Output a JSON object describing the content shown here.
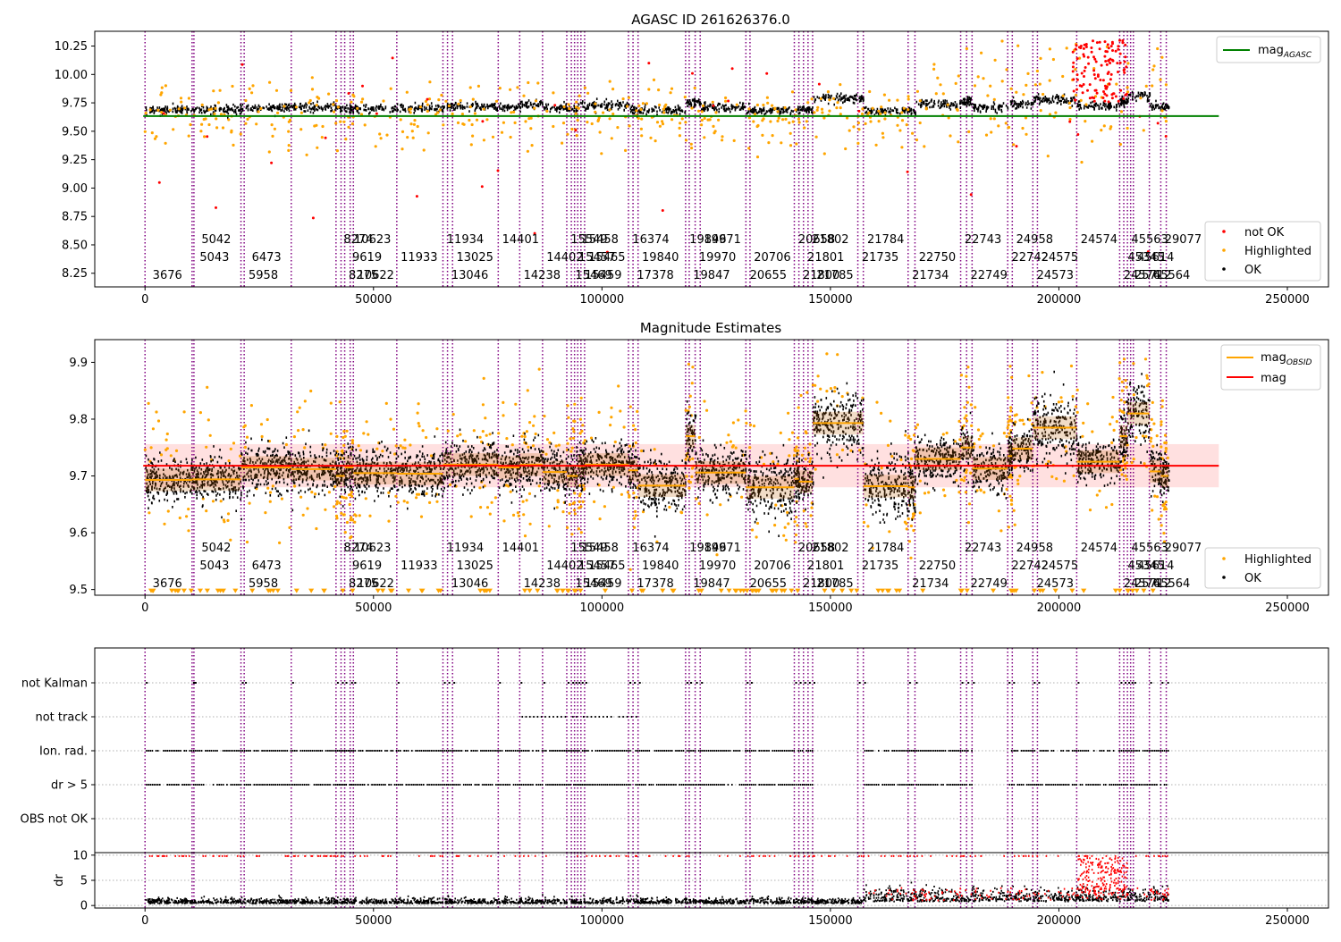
{
  "figure": {
    "panel1_title": "AGASC ID 261626376.0",
    "panel2_title": "Magnitude Estimates"
  },
  "colors": {
    "ok": "#000000",
    "highlighted": "#ffa500",
    "not_ok": "#ff0000",
    "mag_agasc": "#008000",
    "mag": "#ff0000",
    "mag_obsid": "#ffa500",
    "obsid_lines": "#800080",
    "band": "#ffd8d8"
  },
  "obsids": [
    {
      "x": 0,
      "label": "3676",
      "row": 0
    },
    {
      "x": 10300,
      "label": "5043",
      "row": 1
    },
    {
      "x": 10700,
      "label": "5042",
      "row": 2
    },
    {
      "x": 21000,
      "label": "5958",
      "row": 0
    },
    {
      "x": 21700,
      "label": "6473",
      "row": 1
    },
    {
      "x": 32000,
      "label": "",
      "row": 0
    },
    {
      "x": 41800,
      "label": "8274",
      "row": 2
    },
    {
      "x": 42900,
      "label": "8275",
      "row": 0
    },
    {
      "x": 43700,
      "label": "9619",
      "row": 1
    },
    {
      "x": 44900,
      "label": "10623",
      "row": 2
    },
    {
      "x": 45600,
      "label": "10622",
      "row": 0
    },
    {
      "x": 55100,
      "label": "11933",
      "row": 1
    },
    {
      "x": 65200,
      "label": "11934",
      "row": 2
    },
    {
      "x": 66200,
      "label": "13046",
      "row": 0
    },
    {
      "x": 67300,
      "label": "13025",
      "row": 1
    },
    {
      "x": 77300,
      "label": "14401",
      "row": 2
    },
    {
      "x": 82000,
      "label": "14238",
      "row": 0
    },
    {
      "x": 87000,
      "label": "14402",
      "row": 1
    },
    {
      "x": 92300,
      "label": "15549",
      "row": 2
    },
    {
      "x": 93300,
      "label": "15469",
      "row": 0
    },
    {
      "x": 94000,
      "label": "15457",
      "row": 1
    },
    {
      "x": 94700,
      "label": "15458",
      "row": 2
    },
    {
      "x": 95400,
      "label": "15459",
      "row": 0
    },
    {
      "x": 96200,
      "label": "15465",
      "row": 1
    },
    {
      "x": 105800,
      "label": "16374",
      "row": 2
    },
    {
      "x": 106800,
      "label": "17378",
      "row": 0
    },
    {
      "x": 107900,
      "label": "19840",
      "row": 1
    },
    {
      "x": 118300,
      "label": "19846",
      "row": 2
    },
    {
      "x": 119100,
      "label": "19847",
      "row": 0
    },
    {
      "x": 120400,
      "label": "19970",
      "row": 1
    },
    {
      "x": 121500,
      "label": "19971",
      "row": 2
    },
    {
      "x": 131500,
      "label": "20655",
      "row": 0
    },
    {
      "x": 132400,
      "label": "20706",
      "row": 1
    },
    {
      "x": 142100,
      "label": "20658",
      "row": 2
    },
    {
      "x": 143100,
      "label": "21800",
      "row": 0
    },
    {
      "x": 144100,
      "label": "21801",
      "row": 1
    },
    {
      "x": 145100,
      "label": "21802",
      "row": 2
    },
    {
      "x": 146100,
      "label": "21785",
      "row": 0
    },
    {
      "x": 156000,
      "label": "21735",
      "row": 1
    },
    {
      "x": 157200,
      "label": "21784",
      "row": 2
    },
    {
      "x": 167000,
      "label": "21734",
      "row": 0
    },
    {
      "x": 168500,
      "label": "22750",
      "row": 1
    },
    {
      "x": 178500,
      "label": "22743",
      "row": 2
    },
    {
      "x": 179800,
      "label": "22749",
      "row": 0
    },
    {
      "x": 181000,
      "label": "",
      "row": 1
    },
    {
      "x": 188800,
      "label": "22742",
      "row": 1
    },
    {
      "x": 189800,
      "label": "24958",
      "row": 2
    },
    {
      "x": 194300,
      "label": "24573",
      "row": 0
    },
    {
      "x": 195300,
      "label": "24575",
      "row": 1
    },
    {
      "x": 203900,
      "label": "24574",
      "row": 2
    },
    {
      "x": 213300,
      "label": "24576",
      "row": 0
    },
    {
      "x": 214200,
      "label": "45345",
      "row": 1
    },
    {
      "x": 215000,
      "label": "45563",
      "row": 2
    },
    {
      "x": 215700,
      "label": "25712",
      "row": 0
    },
    {
      "x": 216300,
      "label": "45614",
      "row": 1
    },
    {
      "x": 219800,
      "label": "45564",
      "row": 0
    },
    {
      "x": 222300,
      "label": "29077",
      "row": 2
    },
    {
      "x": 223500,
      "label": "",
      "row": 0
    }
  ],
  "chart_data": [
    {
      "type": "scatter",
      "title": "AGASC ID 261626376.0",
      "xlabel": "",
      "ylabel": "",
      "xlim": [
        -11000,
        259000
      ],
      "ylim": [
        8.13,
        10.38
      ],
      "xticks": [
        0,
        50000,
        100000,
        150000,
        200000,
        250000
      ],
      "yticks": [
        8.25,
        8.5,
        8.75,
        9.0,
        9.25,
        9.5,
        9.75,
        10.0,
        10.25
      ],
      "mag_agasc": 9.634,
      "legend_lines": {
        "position": "top-right",
        "entries": [
          "mag_AGASC"
        ]
      },
      "legend_points": {
        "position": "bottom-right",
        "entries": [
          "not OK",
          "Highlighted",
          "OK"
        ]
      },
      "segments": [
        {
          "x": [
            0,
            10300
          ],
          "level": 9.69
        },
        {
          "x": [
            10300,
            21000
          ],
          "level": 9.69
        },
        {
          "x": [
            21000,
            32000
          ],
          "level": 9.71
        },
        {
          "x": [
            32000,
            41800
          ],
          "level": 9.71
        },
        {
          "x": [
            41800,
            55100
          ],
          "level": 9.7
        },
        {
          "x": [
            55100,
            65200
          ],
          "level": 9.7
        },
        {
          "x": [
            65200,
            77300
          ],
          "level": 9.72
        },
        {
          "x": [
            77300,
            82000
          ],
          "level": 9.71
        },
        {
          "x": [
            82000,
            87000
          ],
          "level": 9.74
        },
        {
          "x": [
            87000,
            94700
          ],
          "level": 9.7
        },
        {
          "x": [
            94700,
            105800
          ],
          "level": 9.73
        },
        {
          "x": [
            105800,
            118300
          ],
          "level": 9.68
        },
        {
          "x": [
            118300,
            121500
          ],
          "level": 9.75
        },
        {
          "x": [
            121500,
            131500
          ],
          "level": 9.71
        },
        {
          "x": [
            131500,
            142100
          ],
          "level": 9.68
        },
        {
          "x": [
            142100,
            146100
          ],
          "level": 9.69
        },
        {
          "x": [
            146100,
            157200
          ],
          "level": 9.79
        },
        {
          "x": [
            157200,
            168500
          ],
          "level": 9.68
        },
        {
          "x": [
            168500,
            178500
          ],
          "level": 9.74
        },
        {
          "x": [
            178500,
            181000
          ],
          "level": 9.76
        },
        {
          "x": [
            181000,
            188800
          ],
          "level": 9.71
        },
        {
          "x": [
            188800,
            194300
          ],
          "level": 9.74
        },
        {
          "x": [
            194300,
            203900
          ],
          "level": 9.78
        },
        {
          "x": [
            203900,
            213300
          ],
          "level": 9.72
        },
        {
          "x": [
            213300,
            215000
          ],
          "level": 9.76
        },
        {
          "x": [
            215000,
            219800
          ],
          "level": 9.81
        },
        {
          "x": [
            219800,
            224000
          ],
          "level": 9.72
        }
      ]
    },
    {
      "type": "scatter",
      "title": "Magnitude Estimates",
      "xlabel": "",
      "ylabel": "",
      "xlim": [
        -11000,
        259000
      ],
      "ylim": [
        9.49,
        9.94
      ],
      "xticks": [
        0,
        50000,
        100000,
        150000,
        200000,
        250000
      ],
      "yticks": [
        9.5,
        9.6,
        9.7,
        9.8,
        9.9
      ],
      "mag": 9.718,
      "mag_band": [
        9.68,
        9.756
      ],
      "legend_lines": {
        "position": "top-right",
        "entries": [
          "mag_OBSID",
          "mag"
        ]
      },
      "legend_points": {
        "position": "bottom-right",
        "entries": [
          "Highlighted",
          "OK"
        ]
      },
      "obsid_mags": [
        {
          "x": [
            0,
            10300
          ],
          "mag": 9.693
        },
        {
          "x": [
            10300,
            21000
          ],
          "mag": 9.694
        },
        {
          "x": [
            21000,
            32000
          ],
          "mag": 9.715
        },
        {
          "x": [
            32000,
            41800
          ],
          "mag": 9.712
        },
        {
          "x": [
            41800,
            43700
          ],
          "mag": 9.7
        },
        {
          "x": [
            43700,
            45600
          ],
          "mag": 9.715
        },
        {
          "x": [
            45600,
            55100
          ],
          "mag": 9.705
        },
        {
          "x": [
            55100,
            65200
          ],
          "mag": 9.704
        },
        {
          "x": [
            65200,
            77300
          ],
          "mag": 9.72
        },
        {
          "x": [
            77300,
            82000
          ],
          "mag": 9.715
        },
        {
          "x": [
            82000,
            87000
          ],
          "mag": 9.72
        },
        {
          "x": [
            87000,
            92300
          ],
          "mag": 9.707
        },
        {
          "x": [
            92300,
            94700
          ],
          "mag": 9.7
        },
        {
          "x": [
            94700,
            96200
          ],
          "mag": 9.717
        },
        {
          "x": [
            96200,
            105800
          ],
          "mag": 9.72
        },
        {
          "x": [
            105800,
            107900
          ],
          "mag": 9.71
        },
        {
          "x": [
            107900,
            118300
          ],
          "mag": 9.683
        },
        {
          "x": [
            118300,
            120400
          ],
          "mag": 9.77
        },
        {
          "x": [
            120400,
            131500
          ],
          "mag": 9.706
        },
        {
          "x": [
            131500,
            142100
          ],
          "mag": 9.68
        },
        {
          "x": [
            142100,
            143100
          ],
          "mag": 9.695
        },
        {
          "x": [
            143100,
            146100
          ],
          "mag": 9.69
        },
        {
          "x": [
            146100,
            157200
          ],
          "mag": 9.793
        },
        {
          "x": [
            157200,
            167000
          ],
          "mag": 9.682
        },
        {
          "x": [
            167000,
            168500
          ],
          "mag": 9.68
        },
        {
          "x": [
            168500,
            178500
          ],
          "mag": 9.73
        },
        {
          "x": [
            178500,
            181000
          ],
          "mag": 9.75
        },
        {
          "x": [
            181000,
            188800
          ],
          "mag": 9.713
        },
        {
          "x": [
            188800,
            189800
          ],
          "mag": 9.735
        },
        {
          "x": [
            189800,
            194300
          ],
          "mag": 9.748
        },
        {
          "x": [
            194300,
            203900
          ],
          "mag": 9.785
        },
        {
          "x": [
            203900,
            213300
          ],
          "mag": 9.725
        },
        {
          "x": [
            213300,
            215000
          ],
          "mag": 9.77
        },
        {
          "x": [
            215000,
            219800
          ],
          "mag": 9.81
        },
        {
          "x": [
            219800,
            222300
          ],
          "mag": 9.708
        },
        {
          "x": [
            222300,
            224000
          ],
          "mag": 9.7
        }
      ]
    },
    {
      "type": "scatter",
      "title": "",
      "xlabel": "",
      "ylabel": "",
      "xlim": [
        -11000,
        259000
      ],
      "xticks": [
        0,
        50000,
        100000,
        150000,
        200000,
        250000
      ],
      "flags": [
        "not Kalman",
        "not track",
        "Ion. rad.",
        "dr > 5",
        "OBS not OK"
      ]
    },
    {
      "type": "scatter",
      "title": "",
      "xlabel": "",
      "ylabel": "dr",
      "xlim": [
        -11000,
        259000
      ],
      "ylim": [
        -0.5,
        10.5
      ],
      "xticks": [
        0,
        50000,
        100000,
        150000,
        200000,
        250000
      ],
      "yticks": [
        0,
        5,
        10
      ]
    }
  ],
  "tick_labels": {
    "x": [
      "0",
      "50000",
      "100000",
      "150000",
      "200000",
      "250000"
    ],
    "p1_y": [
      "8.25",
      "8.50",
      "8.75",
      "9.00",
      "9.25",
      "9.50",
      "9.75",
      "10.00",
      "10.25"
    ],
    "p2_y": [
      "9.5",
      "9.6",
      "9.7",
      "9.8",
      "9.9"
    ],
    "p4_y": [
      "0",
      "5",
      "10"
    ]
  },
  "legends": {
    "p1_lines": [
      "mag",
      "AGASC"
    ],
    "p1_points": [
      "not OK",
      "Highlighted",
      "OK"
    ],
    "p2_lines": [
      "mag",
      "OBSID",
      "mag"
    ],
    "p2_points": [
      "Highlighted",
      "OK"
    ]
  }
}
